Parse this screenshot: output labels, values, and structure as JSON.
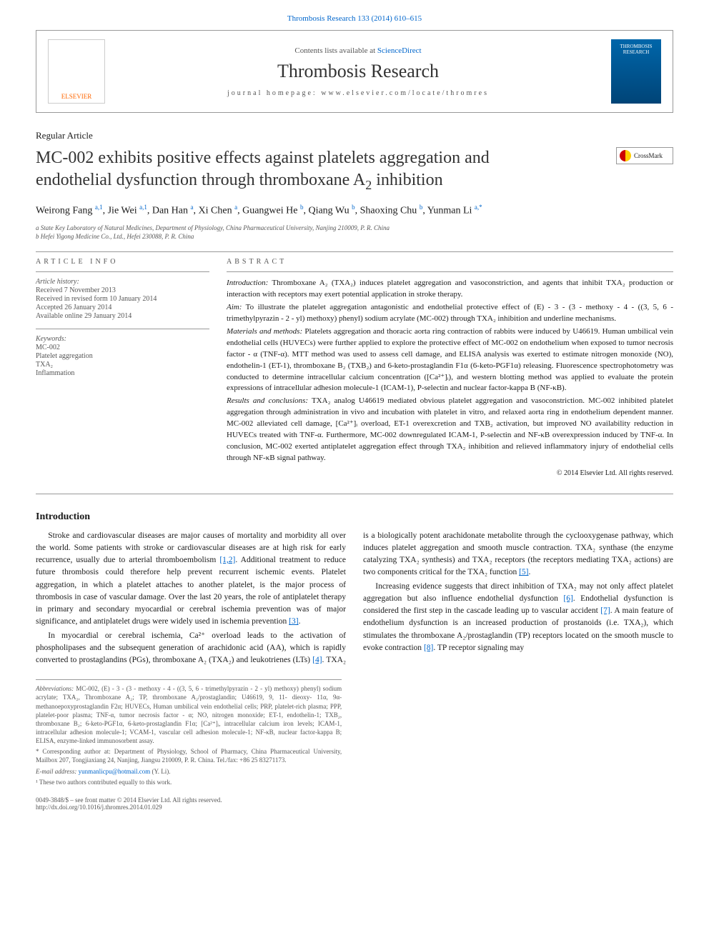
{
  "top_link": "Thrombosis Research 133 (2014) 610–615",
  "header": {
    "publisher": "ELSEVIER",
    "contents_prefix": "Contents lists available at ",
    "contents_link": "ScienceDirect",
    "journal_name": "Thrombosis Research",
    "homepage_label": "journal homepage: ",
    "homepage_url": "www.elsevier.com/locate/thromres",
    "cover_line1": "THROMBOSIS",
    "cover_line2": "RESEARCH"
  },
  "article_type": "Regular Article",
  "title_line1": "MC-002 exhibits positive effects against platelets aggregation and",
  "title_line2": "endothelial dysfunction through thromboxane A",
  "title_sub": "2",
  "title_line2_end": " inhibition",
  "crossmark": "CrossMark",
  "authors_html": "Weirong Fang <sup>a,1</sup>, Jie Wei <sup>a,1</sup>, Dan Han <sup>a</sup>, Xi Chen <sup>a</sup>, Guangwei He <sup>b</sup>, Qiang Wu <sup>b</sup>, Shaoxing Chu <sup>b</sup>, Yunman Li <sup>a,*</sup>",
  "affiliations": [
    "a State Key Laboratory of Natural Medicines, Department of Physiology, China Pharmaceutical University, Nanjing 210009, P. R. China",
    "b Hefei Yigong Medicine Co., Ltd., Hefei 230088, P. R. China"
  ],
  "info_heading": "ARTICLE INFO",
  "history_label": "Article history:",
  "history": [
    "Received 7 November 2013",
    "Received in revised form 10 January 2014",
    "Accepted 26 January 2014",
    "Available online 29 January 2014"
  ],
  "keywords_label": "Keywords:",
  "keywords": [
    "MC-002",
    "Platelet aggregation",
    "TXA₂",
    "Inflammation"
  ],
  "abstract_heading": "ABSTRACT",
  "abstract": {
    "intro_label": "Introduction:",
    "intro": " Thromboxane A₂ (TXA₂) induces platelet aggregation and vasoconstriction, and agents that inhibit TXA₂ production or interaction with receptors may exert potential application in stroke therapy.",
    "aim_label": "Aim:",
    "aim": " To illustrate the platelet aggregation antagonistic and endothelial protective effect of (E) - 3 - (3 - methoxy - 4 - ((3, 5, 6 - trimethylpyrazin - 2 - yl) methoxy) phenyl) sodium acrylate (MC-002) through TXA₂ inhibition and underline mechanisms.",
    "mm_label": "Materials and methods:",
    "mm": " Platelets aggregation and thoracic aorta ring contraction of rabbits were induced by U46619. Human umbilical vein endothelial cells (HUVECs) were further applied to explore the protective effect of MC-002 on endothelium when exposed to tumor necrosis factor - α (TNF-α). MTT method was used to assess cell damage, and ELISA analysis was exerted to estimate nitrogen monoxide (NO), endothelin-1 (ET-1), thromboxane B₂ (TXB₂) and 6-keto-prostaglandin F1α (6-keto-PGF1α) releasing. Fluorescence spectrophotometry was conducted to determine intracellular calcium concentration ([Ca²⁺]ᵢ), and western blotting method was applied to evaluate the protein expressions of intracellular adhesion molecule-1 (ICAM-1), P-selectin and nuclear factor-kappa B (NF-κB).",
    "rc_label": "Results and conclusions:",
    "rc": " TXA₂ analog U46619 mediated obvious platelet aggregation and vasoconstriction. MC-002 inhibited platelet aggregation through administration in vivo and incubation with platelet in vitro, and relaxed aorta ring in endothelium dependent manner. MC-002 alleviated cell damage, [Ca²⁺]ᵢ overload, ET-1 overexcretion and TXB₂ activation, but improved NO availability reduction in HUVECs treated with TNF-α. Furthermore, MC-002 downregulated ICAM-1, P-selectin and NF-κB overexpression induced by TNF-α. In conclusion, MC-002 exerted antiplatelet aggregation effect through TXA₂ inhibition and relieved inflammatory injury of endothelial cells through NF-κB signal pathway.",
    "copyright": "© 2014 Elsevier Ltd. All rights reserved."
  },
  "body": {
    "heading": "Introduction",
    "p1": "Stroke and cardiovascular diseases are major causes of mortality and morbidity all over the world. Some patients with stroke or cardiovascular diseases are at high risk for early recurrence, usually due to arterial thromboembolism [1,2]. Additional treatment to reduce future thrombosis could therefore help prevent recurrent ischemic events. Platelet aggregation, in which a platelet attaches to another platelet, is the major process of thrombosis in case of vascular damage. Over the last 20 years, the role of antiplatelet therapy in primary and secondary myocardial or cerebral ischemia prevention was of major significance, and antiplatelet drugs were widely used in ischemia prevention [3].",
    "p2": "In myocardial or cerebral ischemia, Ca²⁺ overload leads to the activation of phospholipases and the subsequent generation of arachidonic acid (AA), which is rapidly converted to prostaglandins (PGs), thromboxane A₂ (TXA₂) and leukotrienes (LTs) [4]. TXA₂ is a biologically potent arachidonate metabolite through the cyclooxygenase pathway, which induces platelet aggregation and smooth muscle contraction. TXA₂ synthase (the enzyme catalyzing TXA₂ synthesis) and TXA₂ receptors (the receptors mediating TXA₂ actions) are two components critical for the TXA₂ function [5].",
    "p3": "Increasing evidence suggests that direct inhibition of TXA₂ may not only affect platelet aggregation but also influence endothelial dysfunction [6]. Endothelial dysfunction is considered the first step in the cascade leading up to vascular accident [7]. A main feature of endothelium dysfunction is an increased production of prostanoids (i.e. TXA₂), which stimulates the thromboxane A₂/prostaglandin (TP) receptors located on the smooth muscle to evoke contraction [8]. TP receptor signaling may"
  },
  "footnotes": {
    "abbrev_label": "Abbreviations:",
    "abbrev": " MC-002, (E) - 3 - (3 - methoxy - 4 - ((3, 5, 6 - trimethylpyrazin - 2 - yl) methoxy) phenyl) sodium acrylate; TXA₂, Thromboxane A₂; TP, thromboxane A₂/prostaglandin; U46619, 9, 11- dieoxy- 11α, 9α-methanoepoxyprostaglandin F2α; HUVECs, Human umbilical vein endothelial cells; PRP, platelet-rich plasma; PPP, platelet-poor plasma; TNF-α, tumor necrosis factor - α; NO, nitrogen monoxide; ET-1, endothelin-1; TXB₂, thromboxane B₂; 6-keto-PGF1α, 6-keto-prostaglandin F1α; [Ca²⁺]ᵢ, intracellular calcium iron levels; ICAM-1, intracellular adhesion molecule-1; VCAM-1, vascular cell adhesion molecule-1; NF-κB, nuclear factor-kappa B; ELISA, enzyme-linked immunosorbent assay.",
    "corr": "* Corresponding author at: Department of Physiology, School of Pharmacy, China Pharmaceutical University, Mailbox 207, Tongjiaxiang 24, Nanjing, Jiangsu 210009, P. R. China. Tel./fax: +86 25 83271173.",
    "email_label": "E-mail address: ",
    "email": "yunmanlicpu@hotmail.com",
    "email_suffix": " (Y. Li).",
    "equal": "¹ These two authors contributed equally to this work."
  },
  "bottom": {
    "left1": "0049-3848/$ – see front matter © 2014 Elsevier Ltd. All rights reserved.",
    "left2": "http://dx.doi.org/10.1016/j.thromres.2014.01.029"
  },
  "links": {
    "ref12": "[1,2]",
    "ref3": "[3]",
    "ref4": "[4]",
    "ref5": "[5]",
    "ref6": "[6]",
    "ref7": "[7]",
    "ref8": "[8]"
  }
}
